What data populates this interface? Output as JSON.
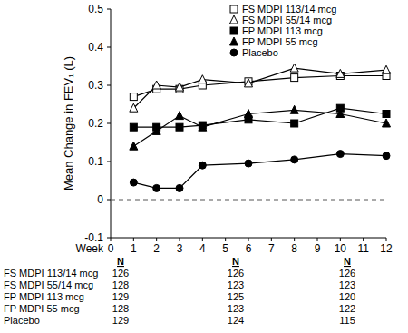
{
  "chart_data": {
    "type": "line",
    "y_label": "Mean Change in FEV₁ (L)",
    "x_label": "Week",
    "x": [
      1,
      2,
      3,
      4,
      6,
      8,
      10,
      12
    ],
    "xlim": [
      0,
      12
    ],
    "xticks": [
      0,
      1,
      2,
      3,
      4,
      5,
      6,
      7,
      8,
      9,
      10,
      11,
      12
    ],
    "ylim": [
      -0.1,
      0.5
    ],
    "yticks": [
      -0.1,
      0,
      0.1,
      0.2,
      0.3,
      0.4,
      0.5
    ],
    "legend": "upper center",
    "reference_line": {
      "value": 0,
      "line_style": "dashed"
    },
    "series": [
      {
        "name": "FS MDPI 113/14 mcg",
        "color": "#000000",
        "marker": "square-open",
        "line_style": "solid",
        "values": [
          0.27,
          0.29,
          0.29,
          0.3,
          0.31,
          0.32,
          0.325,
          0.325
        ]
      },
      {
        "name": "FS MDPI 55/14 mcg",
        "color": "#000000",
        "marker": "triangle-open",
        "line_style": "solid",
        "values": [
          0.24,
          0.3,
          0.295,
          0.315,
          0.305,
          0.345,
          0.33,
          0.34
        ]
      },
      {
        "name": "FP MDPI 113 mcg",
        "color": "#000000",
        "marker": "square",
        "line_style": "solid",
        "values": [
          0.19,
          0.19,
          0.19,
          0.195,
          0.21,
          0.2,
          0.24,
          0.225
        ]
      },
      {
        "name": "FP MDPI 55 mcg",
        "color": "#000000",
        "marker": "triangle",
        "line_style": "solid",
        "values": [
          0.14,
          0.18,
          0.22,
          0.19,
          0.225,
          0.235,
          0.225,
          0.2
        ]
      },
      {
        "name": "Placebo",
        "color": "#000000",
        "marker": "circle",
        "line_style": "solid",
        "values": [
          0.045,
          0.03,
          0.03,
          0.09,
          0.095,
          0.105,
          0.12,
          0.115
        ]
      }
    ],
    "n_table": {
      "headers": [
        "N",
        "N",
        "N"
      ],
      "rows": [
        {
          "label": "FS MDPI 113/14 mcg",
          "values": [
            126,
            126,
            126
          ]
        },
        {
          "label": "FS MDPI 55/14 mcg",
          "values": [
            128,
            123,
            123
          ]
        },
        {
          "label": "FP MDPI 113 mcg",
          "values": [
            129,
            125,
            120
          ]
        },
        {
          "label": "FP MDPI 55 mcg",
          "values": [
            128,
            123,
            122
          ]
        },
        {
          "label": "Placebo",
          "values": [
            129,
            124,
            115
          ]
        }
      ]
    }
  }
}
